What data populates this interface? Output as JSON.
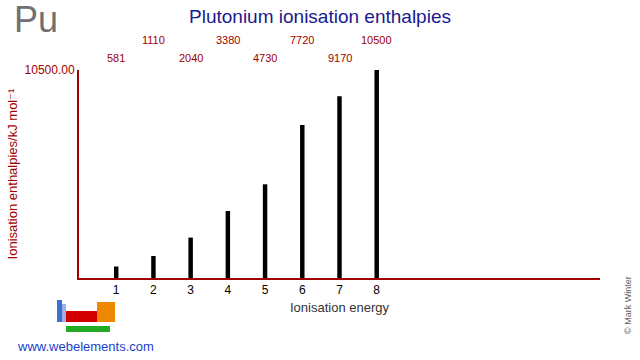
{
  "chart_data": {
    "type": "bar",
    "title": "Plutonium ionisation enthalpies",
    "x_label": "Ionisation energy",
    "y_label": "Ionisation enthalpies/kJ mol⁻¹",
    "x": [
      1,
      2,
      3,
      4,
      5,
      6,
      7,
      8
    ],
    "values": [
      581,
      1110,
      2040,
      3380,
      4730,
      7720,
      9170,
      10500
    ],
    "color": "#000000",
    "xlim": [
      0,
      14
    ],
    "xticks": [
      1,
      2,
      3,
      4,
      5,
      6,
      7,
      8
    ],
    "ylim": [
      0,
      10500
    ],
    "yticks": [
      {
        "value": 10500,
        "label": "10500.00"
      }
    ],
    "grid": false,
    "data_labels": true,
    "annotations": [
      "Pu",
      "www.webelements.com",
      "© Mark Winter"
    ]
  }
}
